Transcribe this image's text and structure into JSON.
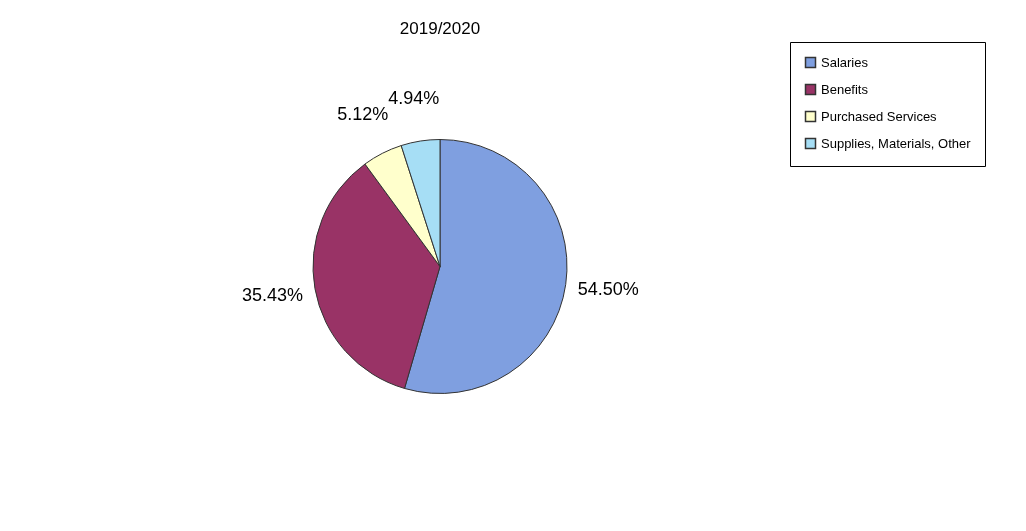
{
  "chart_data": {
    "type": "pie",
    "title": "2019/2020",
    "categories": [
      "Salaries",
      "Benefits",
      "Purchased Services",
      "Supplies, Materials, Other"
    ],
    "values": [
      54.5,
      35.43,
      5.12,
      4.94
    ],
    "colors": [
      "#7f9fe0",
      "#993366",
      "#ffffcc",
      "#a6def5"
    ],
    "value_labels": [
      "54.50%",
      "35.43%",
      "5.12%",
      "4.94%"
    ],
    "legend": "right"
  }
}
